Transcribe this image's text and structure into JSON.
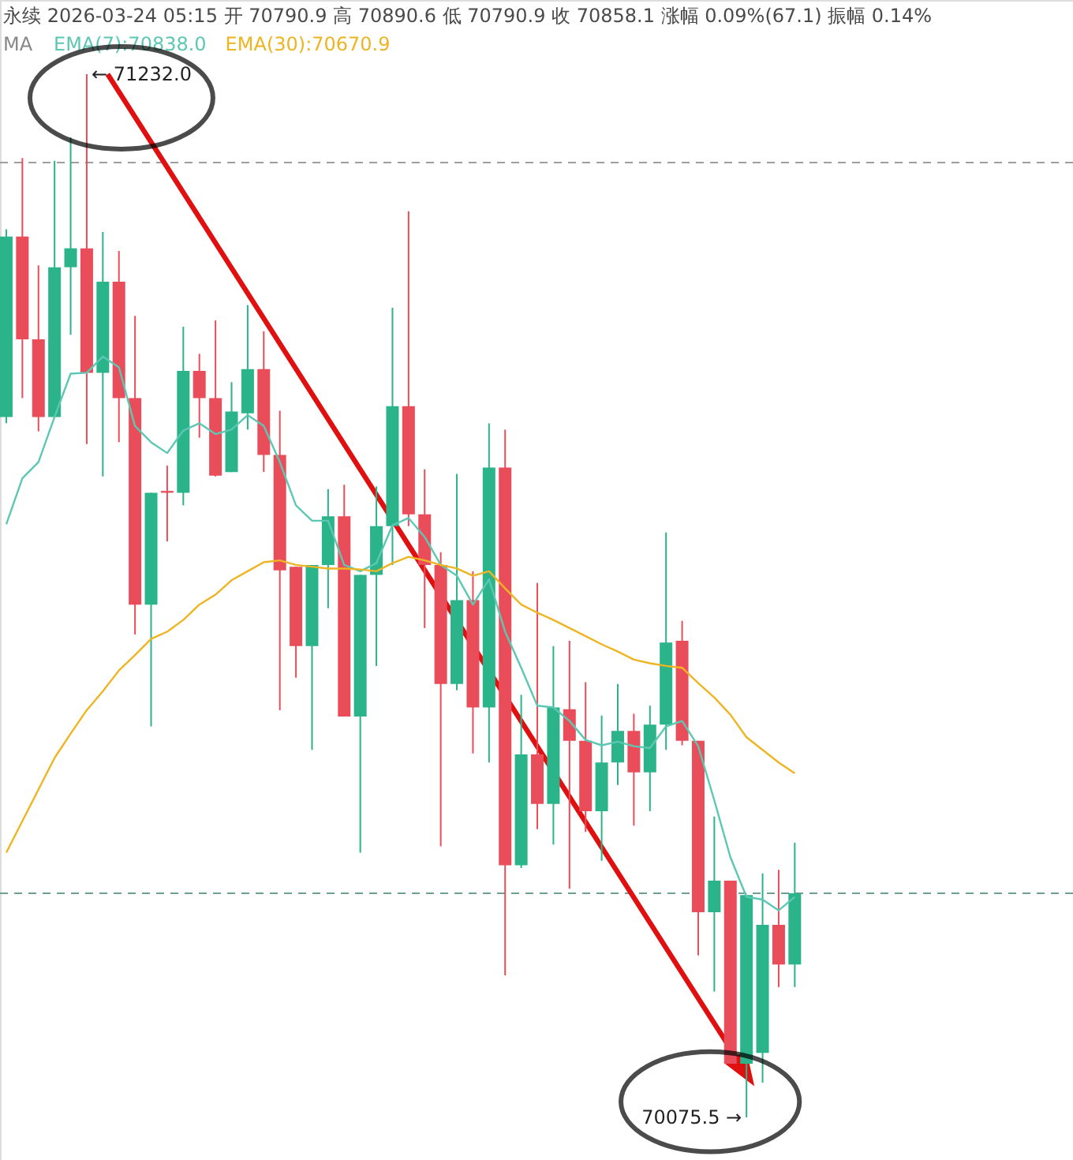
{
  "chart_data": {
    "type": "candlestick",
    "title": "永续  2026-03-24 05:15  开 70790.9  高 70890.6  低 70790.9  收 70858.1  涨幅 0.09%(67.1)  振幅 0.14%",
    "categories": [
      null,
      null,
      null,
      null,
      null,
      null,
      null,
      null,
      null,
      null,
      null,
      null,
      null,
      null,
      null,
      null,
      null,
      null,
      null,
      null,
      null,
      null,
      null,
      null,
      null,
      null,
      null,
      null,
      null,
      null,
      null,
      null,
      null,
      null,
      null,
      null,
      null,
      null,
      null,
      null,
      null,
      null,
      null,
      null,
      null,
      null,
      null,
      null,
      null,
      null
    ],
    "ohlc": [
      [
        70852,
        71060,
        70845,
        71052
      ],
      [
        71052,
        71139,
        70873,
        70938
      ],
      [
        70938,
        71020,
        70836,
        70852
      ],
      [
        70852,
        71136,
        70852,
        71018
      ],
      [
        71018,
        71162,
        70943,
        71039
      ],
      [
        71039,
        71232.0,
        70822,
        70901
      ],
      [
        70901,
        71057,
        70786,
        71002
      ],
      [
        71002,
        71036,
        70824,
        70873
      ],
      [
        70873,
        70964,
        70611,
        70644
      ],
      [
        70644,
        70768,
        70509,
        70768
      ],
      [
        70770,
        70798,
        70714,
        70768
      ],
      [
        70768,
        70952,
        70754,
        70903
      ],
      [
        70903,
        70922,
        70829,
        70873
      ],
      [
        70873,
        70959,
        70786,
        70787
      ],
      [
        70790.9,
        70890.6,
        70790.9,
        70858.1
      ],
      [
        70856,
        70976,
        70838,
        70905
      ],
      [
        70905,
        70947,
        70791,
        70810
      ],
      [
        70810,
        70859,
        70527,
        70682
      ],
      [
        70686,
        70686,
        70563,
        70598
      ],
      [
        70598,
        70688,
        70483,
        70688
      ],
      [
        70688,
        70772,
        70640,
        70742
      ],
      [
        70742,
        70777,
        70520,
        70520
      ],
      [
        70520,
        70677,
        70369,
        70677
      ],
      [
        70677,
        70775,
        70576,
        70731
      ],
      [
        70731,
        70973,
        70688,
        70864
      ],
      [
        70864,
        71080,
        70731,
        70744
      ],
      [
        70744,
        70794,
        70618,
        70688
      ],
      [
        70688,
        70702,
        70376,
        70556
      ],
      [
        70556,
        70789,
        70549,
        70649
      ],
      [
        70649,
        70681,
        70479,
        70530
      ],
      [
        70530,
        70845,
        70469,
        70796
      ],
      [
        70796,
        70838,
        70233,
        70355
      ],
      [
        70355,
        70544,
        70352,
        70478
      ],
      [
        70478,
        70668,
        70395,
        70423
      ],
      [
        70423,
        70598,
        70378,
        70530
      ],
      [
        70528,
        70604,
        70329,
        70493
      ],
      [
        70493,
        70558,
        70392,
        70415
      ],
      [
        70415,
        70521,
        70360,
        70469
      ],
      [
        70469,
        70556,
        70444,
        70504
      ],
      [
        70504,
        70523,
        70399,
        70458
      ],
      [
        70458,
        70532,
        70415,
        70511
      ],
      [
        70511,
        70724,
        70483,
        70602
      ],
      [
        70604,
        70626,
        70488,
        70493
      ],
      [
        70493,
        70493,
        70255,
        70303
      ],
      [
        70303,
        70409,
        70215,
        70338
      ],
      [
        70338,
        70338,
        70135,
        70135
      ],
      [
        70135,
        70322,
        70075.5,
        70322
      ],
      [
        70147,
        70346,
        70114,
        70289
      ],
      [
        70289,
        70350,
        70220,
        70245
      ],
      [
        70245,
        70380,
        70220,
        70324
      ]
    ],
    "colors": [
      "#2bb38a",
      "#ea4d5a",
      "#ea4d5a",
      "#2bb38a",
      "#2bb38a",
      "#ea4d5a",
      "#2bb38a",
      "#ea4d5a",
      "#ea4d5a",
      "#2bb38a",
      "#ea4d5a",
      "#2bb38a",
      "#ea4d5a",
      "#ea4d5a",
      "#2bb38a",
      "#2bb38a",
      "#ea4d5a",
      "#ea4d5a",
      "#ea4d5a",
      "#2bb38a",
      "#2bb38a",
      "#ea4d5a",
      "#2bb38a",
      "#2bb38a",
      "#2bb38a",
      "#ea4d5a",
      "#ea4d5a",
      "#ea4d5a",
      "#2bb38a",
      "#ea4d5a",
      "#2bb38a",
      "#ea4d5a",
      "#2bb38a",
      "#ea4d5a",
      "#2bb38a",
      "#ea4d5a",
      "#ea4d5a",
      "#2bb38a",
      "#2bb38a",
      "#ea4d5a",
      "#2bb38a",
      "#2bb38a",
      "#ea4d5a",
      "#ea4d5a",
      "#2bb38a",
      "#ea4d5a",
      "#2bb38a",
      "#2bb38a",
      "#ea4d5a",
      "#2bb38a"
    ],
    "series": [
      {
        "name": "EMA(7):70838.0",
        "type": "line",
        "color": "#5cc8b4",
        "values": [
          70733,
          70784,
          70802,
          70852,
          70900,
          70901,
          70919,
          70907,
          70842,
          70824,
          70812,
          70837,
          70845,
          70833,
          70838,
          70854,
          70842,
          70802,
          70754,
          70737,
          70737,
          70688,
          70681,
          70690,
          70732,
          70740,
          70719,
          70688,
          70676,
          70644,
          70672,
          70614,
          70574,
          70532,
          70530,
          70515,
          70494,
          70488,
          70492,
          70487,
          70485,
          70509,
          70515,
          70487,
          70427,
          70364,
          70320,
          70317,
          70305,
          70320
        ]
      },
      {
        "name": "EMA(30):70670.9",
        "type": "line",
        "color": "#eeb422",
        "values": [
          70369,
          70404,
          70439,
          70474,
          70501,
          70527,
          70548,
          70571,
          70588,
          70606,
          70614,
          70627,
          70644,
          70655,
          70671,
          70681,
          70691,
          70693,
          70688,
          70686,
          70684,
          70684,
          70683,
          70681,
          70690,
          70697,
          70693,
          70688,
          70684,
          70676,
          70681,
          70662,
          70644,
          70635,
          70627,
          70618,
          70609,
          70600,
          70592,
          70583,
          70579,
          70576,
          70574,
          70557,
          70541,
          70522,
          70497,
          70483,
          70469,
          70457
        ]
      }
    ],
    "ref_lines": [
      {
        "axis": "y",
        "value": 71134,
        "color": "#9e9e9e",
        "line_style": "dashed"
      },
      {
        "axis": "y",
        "value": 70324,
        "color": "#6f9f92",
        "line_style": "dashed"
      }
    ],
    "annotations": [
      "MA",
      "← 71232.0",
      "70075.5 →"
    ],
    "legend": "top left"
  }
}
